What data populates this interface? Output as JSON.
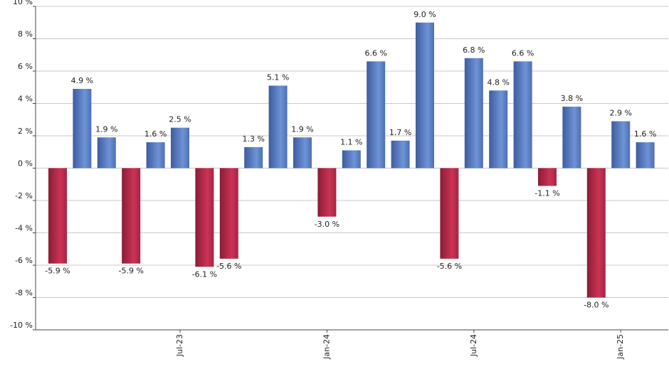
{
  "chart_data": {
    "type": "bar",
    "categories": [
      null,
      null,
      null,
      null,
      null,
      "Jul-23",
      null,
      null,
      null,
      null,
      null,
      "Jan-24",
      null,
      null,
      null,
      null,
      null,
      "Jul-24",
      null,
      null,
      null,
      null,
      null,
      "Jan-25",
      null
    ],
    "values": [
      -5.9,
      4.9,
      1.9,
      -5.9,
      1.6,
      2.5,
      -6.1,
      -5.6,
      1.3,
      5.1,
      1.9,
      -3.0,
      1.1,
      6.6,
      1.7,
      9.0,
      -5.6,
      6.8,
      4.8,
      6.6,
      -1.1,
      3.8,
      -8.0,
      2.9,
      1.6
    ],
    "value_labels": [
      "-5.9 %",
      "4.9 %",
      "1.9 %",
      "-5.9 %",
      "1.6 %",
      "2.5 %",
      "-6.1 %",
      "-5.6 %",
      "1.3 %",
      "5.1 %",
      "1.9 %",
      "-3.0 %",
      "1.1 %",
      "6.6 %",
      "1.7 %",
      "9.0 %",
      "-5.6 %",
      "6.8 %",
      "4.8 %",
      "6.6 %",
      "-1.1 %",
      "3.8 %",
      "-8.0 %",
      "2.9 %",
      "1.6 %"
    ],
    "color_positive": "#6e93d6",
    "color_negative": "#cc3355",
    "ylim": [
      -10,
      10
    ],
    "yticks": [
      {
        "value": -10,
        "label": "-10 %"
      },
      {
        "value": -8,
        "label": "-8 %"
      },
      {
        "value": -6,
        "label": "-6 %"
      },
      {
        "value": -4,
        "label": "-4 %"
      },
      {
        "value": -2,
        "label": "-2 %"
      },
      {
        "value": 0,
        "label": "0 %"
      },
      {
        "value": 2,
        "label": "2 %"
      },
      {
        "value": 4,
        "label": "4 %"
      },
      {
        "value": 6,
        "label": "6 %"
      },
      {
        "value": 8,
        "label": "8 %"
      },
      {
        "value": 10,
        "label": "10 %"
      }
    ],
    "grid": true
  }
}
